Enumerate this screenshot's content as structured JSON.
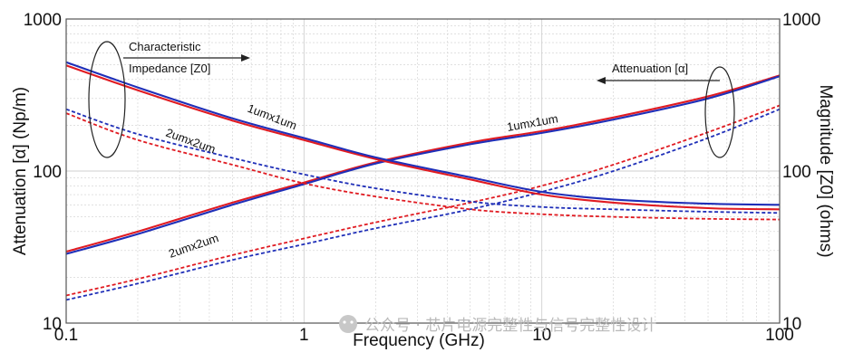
{
  "chart_data": {
    "type": "line",
    "xlabel": "Frequency (GHz)",
    "ylabel_left": "Attenuation [α] (Np/m)",
    "ylabel_right": "Magnitude [Z0] (ohms)",
    "x_scale": "log",
    "y_scale": "log",
    "xlim": [
      0.1,
      100
    ],
    "ylim_left": [
      10,
      1000
    ],
    "ylim_right": [
      10,
      1000
    ],
    "x_ticks": [
      "0.1",
      "1",
      "10",
      "100"
    ],
    "y_ticks_left": [
      "10",
      "100",
      "1000"
    ],
    "y_ticks_right": [
      "10",
      "100",
      "1000"
    ],
    "grid": true,
    "colors": {
      "red": "#e01b22",
      "blue": "#1f2fb8",
      "grid": "#cfcfcf",
      "frame": "#555555"
    },
    "series": [
      {
        "group": "attenuation",
        "label": "1umx1um",
        "color": "#e01b22",
        "style": "solid",
        "x": [
          0.1,
          0.2,
          0.5,
          1,
          2,
          5,
          10,
          20,
          50,
          100
        ],
        "y": [
          29.5,
          40,
          62,
          84,
          114,
          154,
          183,
          225,
          310,
          425
        ]
      },
      {
        "group": "attenuation",
        "label": "1umx1um",
        "color": "#1f2fb8",
        "style": "solid",
        "x": [
          0.1,
          0.2,
          0.5,
          1,
          2,
          5,
          10,
          20,
          50,
          100
        ],
        "y": [
          28.5,
          38.5,
          60,
          82,
          112,
          150,
          178,
          218,
          300,
          420
        ]
      },
      {
        "group": "attenuation",
        "label": "2umx2um",
        "color": "#e01b22",
        "style": "dashed",
        "x": [
          0.1,
          0.2,
          0.5,
          1,
          2,
          5,
          10,
          20,
          50,
          100
        ],
        "y": [
          15.2,
          19.5,
          28,
          36,
          46,
          62,
          80,
          110,
          180,
          270
        ]
      },
      {
        "group": "attenuation",
        "label": "2umx2um",
        "color": "#1f2fb8",
        "style": "dashed",
        "x": [
          0.1,
          0.2,
          0.5,
          1,
          2,
          5,
          10,
          20,
          50,
          100
        ],
        "y": [
          14.2,
          18.2,
          26,
          33,
          42,
          56,
          73,
          100,
          165,
          255
        ]
      },
      {
        "group": "impedance",
        "label": "1umx1um",
        "color": "#e01b22",
        "style": "solid",
        "x": [
          0.1,
          0.2,
          0.5,
          1,
          2,
          5,
          10,
          20,
          50,
          100
        ],
        "y": [
          495,
          340,
          215,
          160,
          120,
          88,
          70,
          62,
          57,
          56
        ]
      },
      {
        "group": "impedance",
        "label": "1umx1um",
        "color": "#1f2fb8",
        "style": "solid",
        "x": [
          0.1,
          0.2,
          0.5,
          1,
          2,
          5,
          10,
          20,
          50,
          100
        ],
        "y": [
          520,
          355,
          222,
          165,
          123,
          91,
          73,
          65,
          61,
          60
        ]
      },
      {
        "group": "impedance",
        "label": "2umx2um",
        "color": "#e01b22",
        "style": "dashed",
        "x": [
          0.1,
          0.2,
          0.5,
          1,
          2,
          5,
          10,
          20,
          50,
          100
        ],
        "y": [
          240,
          160,
          110,
          83,
          68,
          56,
          52,
          50,
          48.5,
          48
        ]
      },
      {
        "group": "impedance",
        "label": "2umx2um",
        "color": "#1f2fb8",
        "style": "dashed",
        "x": [
          0.1,
          0.2,
          0.5,
          1,
          2,
          5,
          10,
          20,
          50,
          100
        ],
        "y": [
          255,
          175,
          122,
          95,
          77,
          63,
          58,
          56,
          54,
          53
        ]
      }
    ],
    "annotations": [
      {
        "text_lines": [
          "Characteristic",
          "Impedance [Z0]"
        ],
        "arrow": "right"
      },
      {
        "text": "Attenuation [α]",
        "arrow": "left"
      },
      {
        "text": "1umx1um",
        "target": "impedance"
      },
      {
        "text": "2umx2um",
        "target": "impedance"
      },
      {
        "text": "1umx1um",
        "target": "attenuation"
      },
      {
        "text": "2umx2um",
        "target": "attenuation"
      }
    ]
  },
  "watermark": "公众号 · 芯片电源完整性与信号完整性设计"
}
